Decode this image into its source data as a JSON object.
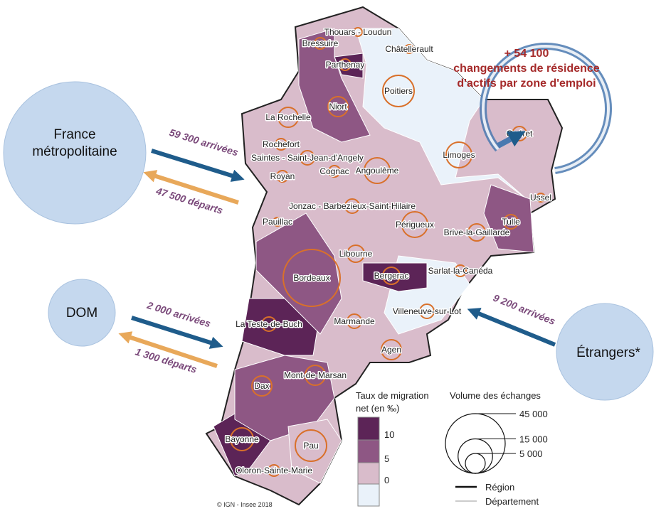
{
  "zones": [
    "Thouars - Loudun",
    "Bressuire",
    "Châtellerault",
    "Parthenay",
    "Poitiers",
    "Niort",
    "La Rochelle",
    "Rochefort",
    "Saintes - Saint-Jean-d'Angely",
    "Cognac",
    "Angoulême",
    "Royan",
    "Limoges",
    "Guéret",
    "Ussel",
    "Tulle",
    "Brive-la-Gaillarde",
    "Jonzac - Barbezieux-Saint-Hilaire",
    "Pauillac",
    "Périgueux",
    "Libourne",
    "Bordeaux",
    "Bergerac",
    "Sarlat-la-Canéda",
    "Villeneuve-sur-Lot",
    "La Teste-de-Buch",
    "Marmande",
    "Agen",
    "Mont-de-Marsan",
    "Dax",
    "Bayonne",
    "Pau",
    "Oloron-Sainte-Marie"
  ],
  "annotation": {
    "total": "+ 54 100",
    "lines": [
      "changements de résidence",
      "d'actifs par zone d'emploi"
    ]
  },
  "flows": [
    {
      "source": "France métropolitaine",
      "in": "59 300 arrivées",
      "out": "47 500 départs"
    },
    {
      "source": "DOM",
      "in": "2 000 arrivées",
      "out": "1 300 départs"
    },
    {
      "source": "Étrangers*",
      "in": "9 200 arrivées"
    }
  ],
  "legend_rate": {
    "title": [
      "Taux de migration",
      "net (en ‰)"
    ],
    "ticks": [
      10,
      5,
      0
    ]
  },
  "legend_volume": {
    "title": "Volume des échanges",
    "ticks": [
      {
        "value": 45000,
        "label": "45 000"
      },
      {
        "value": 15000,
        "label": "15 000"
      },
      {
        "value": 5000,
        "label": "5 000"
      }
    ]
  },
  "legend_lines": [
    "Région",
    "Département"
  ],
  "credit": "© IGN - Insee 2018"
}
